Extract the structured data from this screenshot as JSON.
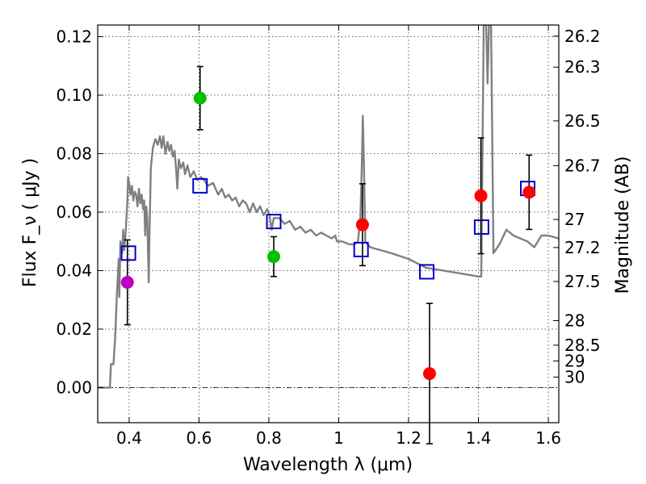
{
  "chart_data": {
    "type": "scatter",
    "title": "",
    "xlabel": "Wavelength  λ (μm)",
    "ylabel": "Flux  F_ν  ( μJy )",
    "ylabel_right": "Magnitude (AB)",
    "xlim": [
      0.31,
      1.63
    ],
    "ylim": [
      -0.012,
      0.124
    ],
    "grid": true,
    "x_ticks": [
      {
        "value": 0.4,
        "label": "0.4"
      },
      {
        "value": 0.6,
        "label": "0.6"
      },
      {
        "value": 0.8,
        "label": "0.8"
      },
      {
        "value": 1.0,
        "label": "1"
      },
      {
        "value": 1.2,
        "label": "1.2"
      },
      {
        "value": 1.4,
        "label": "1.4"
      },
      {
        "value": 1.6,
        "label": "1.6"
      }
    ],
    "y_ticks": [
      {
        "value": 0.0,
        "label": "0.00"
      },
      {
        "value": 0.02,
        "label": "0.02"
      },
      {
        "value": 0.04,
        "label": "0.04"
      },
      {
        "value": 0.06,
        "label": "0.06"
      },
      {
        "value": 0.08,
        "label": "0.08"
      },
      {
        "value": 0.1,
        "label": "0.10"
      },
      {
        "value": 0.12,
        "label": "0.12"
      }
    ],
    "mag_ticks": [
      {
        "label": "26.2",
        "flux": 0.1202
      },
      {
        "label": "26.3",
        "flux": 0.1096
      },
      {
        "label": "26.5",
        "flux": 0.0912
      },
      {
        "label": "26.7",
        "flux": 0.0759
      },
      {
        "label": "27",
        "flux": 0.0575
      },
      {
        "label": "27.2",
        "flux": 0.0479
      },
      {
        "label": "27.5",
        "flux": 0.0363
      },
      {
        "label": "28",
        "flux": 0.0229
      },
      {
        "label": "28.5",
        "flux": 0.0145
      },
      {
        "label": "29",
        "flux": 0.0091
      },
      {
        "label": "30",
        "flux": 0.0036
      }
    ],
    "observed": [
      {
        "x": 0.395,
        "y": 0.036,
        "err": 0.0145,
        "color": "#bf00bf"
      },
      {
        "x": 0.603,
        "y": 0.099,
        "err": 0.0108,
        "color": "#00c000"
      },
      {
        "x": 0.814,
        "y": 0.0448,
        "err": 0.0068,
        "color": "#00c000"
      },
      {
        "x": 1.068,
        "y": 0.0557,
        "err": 0.014,
        "color": "#ff0000"
      },
      {
        "x": 1.26,
        "y": 0.0048,
        "err": 0.024,
        "color": "#ff0000"
      },
      {
        "x": 1.407,
        "y": 0.0656,
        "err": 0.0198,
        "color": "#ff0000"
      },
      {
        "x": 1.545,
        "y": 0.0668,
        "err": 0.0127,
        "color": "#ff0000"
      }
    ],
    "model_photometry": [
      {
        "x": 0.398,
        "y": 0.046
      },
      {
        "x": 0.603,
        "y": 0.069
      },
      {
        "x": 0.814,
        "y": 0.0568
      },
      {
        "x": 1.064,
        "y": 0.0472
      },
      {
        "x": 1.252,
        "y": 0.0396
      },
      {
        "x": 1.409,
        "y": 0.0549
      },
      {
        "x": 1.541,
        "y": 0.0681
      }
    ],
    "sed_model": [
      [
        0.31,
        0.0
      ],
      [
        0.345,
        0.0
      ],
      [
        0.348,
        0.008
      ],
      [
        0.355,
        0.008
      ],
      [
        0.36,
        0.017
      ],
      [
        0.365,
        0.032
      ],
      [
        0.37,
        0.044
      ],
      [
        0.372,
        0.031
      ],
      [
        0.375,
        0.05
      ],
      [
        0.38,
        0.046
      ],
      [
        0.383,
        0.054
      ],
      [
        0.386,
        0.047
      ],
      [
        0.39,
        0.053
      ],
      [
        0.395,
        0.064
      ],
      [
        0.397,
        0.072
      ],
      [
        0.4,
        0.07
      ],
      [
        0.404,
        0.066
      ],
      [
        0.408,
        0.069
      ],
      [
        0.412,
        0.064
      ],
      [
        0.416,
        0.067
      ],
      [
        0.42,
        0.066
      ],
      [
        0.424,
        0.062
      ],
      [
        0.428,
        0.068
      ],
      [
        0.432,
        0.063
      ],
      [
        0.436,
        0.066
      ],
      [
        0.44,
        0.061
      ],
      [
        0.443,
        0.064
      ],
      [
        0.446,
        0.052
      ],
      [
        0.449,
        0.062
      ],
      [
        0.452,
        0.058
      ],
      [
        0.456,
        0.036
      ],
      [
        0.458,
        0.051
      ],
      [
        0.462,
        0.075
      ],
      [
        0.468,
        0.082
      ],
      [
        0.475,
        0.085
      ],
      [
        0.482,
        0.083
      ],
      [
        0.488,
        0.086
      ],
      [
        0.493,
        0.082
      ],
      [
        0.498,
        0.086
      ],
      [
        0.504,
        0.08
      ],
      [
        0.51,
        0.084
      ],
      [
        0.515,
        0.081
      ],
      [
        0.52,
        0.083
      ],
      [
        0.525,
        0.079
      ],
      [
        0.53,
        0.081
      ],
      [
        0.535,
        0.074
      ],
      [
        0.538,
        0.068
      ],
      [
        0.542,
        0.078
      ],
      [
        0.548,
        0.075
      ],
      [
        0.555,
        0.077
      ],
      [
        0.56,
        0.073
      ],
      [
        0.567,
        0.076
      ],
      [
        0.575,
        0.072
      ],
      [
        0.585,
        0.074
      ],
      [
        0.595,
        0.071
      ],
      [
        0.605,
        0.072
      ],
      [
        0.615,
        0.071
      ],
      [
        0.625,
        0.069
      ],
      [
        0.64,
        0.07
      ],
      [
        0.655,
        0.066
      ],
      [
        0.665,
        0.068
      ],
      [
        0.675,
        0.065
      ],
      [
        0.685,
        0.066
      ],
      [
        0.695,
        0.064
      ],
      [
        0.705,
        0.065
      ],
      [
        0.715,
        0.062
      ],
      [
        0.725,
        0.064
      ],
      [
        0.735,
        0.063
      ],
      [
        0.745,
        0.06
      ],
      [
        0.755,
        0.063
      ],
      [
        0.765,
        0.06
      ],
      [
        0.775,
        0.062
      ],
      [
        0.785,
        0.059
      ],
      [
        0.795,
        0.061
      ],
      [
        0.802,
        0.059
      ],
      [
        0.808,
        0.054
      ],
      [
        0.814,
        0.058
      ],
      [
        0.83,
        0.058
      ],
      [
        0.845,
        0.056
      ],
      [
        0.86,
        0.057
      ],
      [
        0.875,
        0.054
      ],
      [
        0.89,
        0.055
      ],
      [
        0.905,
        0.053
      ],
      [
        0.92,
        0.054
      ],
      [
        0.935,
        0.052
      ],
      [
        0.95,
        0.053
      ],
      [
        0.965,
        0.052
      ],
      [
        0.98,
        0.051
      ],
      [
        0.99,
        0.052
      ],
      [
        0.995,
        0.05
      ],
      [
        1.01,
        0.05
      ],
      [
        1.03,
        0.049
      ],
      [
        1.045,
        0.049
      ],
      [
        1.055,
        0.05
      ],
      [
        1.062,
        0.058
      ],
      [
        1.066,
        0.075
      ],
      [
        1.069,
        0.093
      ],
      [
        1.072,
        0.078
      ],
      [
        1.076,
        0.05
      ],
      [
        1.09,
        0.048
      ],
      [
        1.12,
        0.047
      ],
      [
        1.15,
        0.046
      ],
      [
        1.2,
        0.044
      ],
      [
        1.25,
        0.041
      ],
      [
        1.3,
        0.04
      ],
      [
        1.35,
        0.039
      ],
      [
        1.4,
        0.038
      ],
      [
        1.408,
        0.038
      ],
      [
        1.411,
        0.075
      ],
      [
        1.415,
        0.124
      ],
      [
        1.422,
        0.124
      ],
      [
        1.426,
        0.104
      ],
      [
        1.43,
        0.124
      ],
      [
        1.436,
        0.124
      ],
      [
        1.44,
        0.08
      ],
      [
        1.443,
        0.046
      ],
      [
        1.46,
        0.049
      ],
      [
        1.48,
        0.054
      ],
      [
        1.5,
        0.052
      ],
      [
        1.52,
        0.051
      ],
      [
        1.54,
        0.05
      ],
      [
        1.56,
        0.048
      ],
      [
        1.58,
        0.052
      ],
      [
        1.6,
        0.052
      ],
      [
        1.63,
        0.051
      ]
    ]
  }
}
